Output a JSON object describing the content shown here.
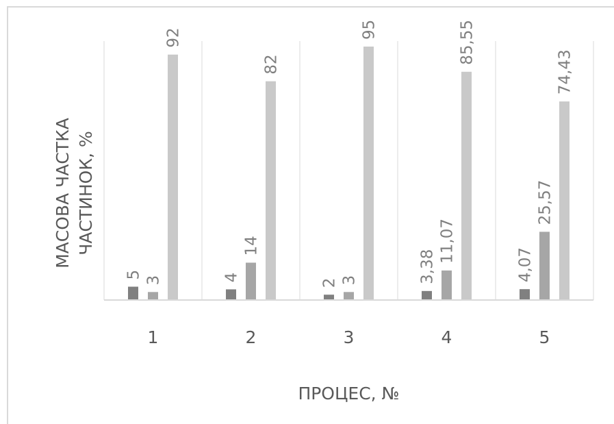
{
  "chart_data": {
    "type": "bar",
    "xlabel": "ПРОЦЕС, №",
    "ylabel_lines": [
      "МАСОВА ЧАСТКА",
      "ЧАСТИНОК, %"
    ],
    "categories": [
      "1",
      "2",
      "3",
      "4",
      "5"
    ],
    "series": [
      {
        "values": [
          5,
          4,
          2,
          3.38,
          4.07
        ],
        "labels": [
          "5",
          "4",
          "2",
          "3,38",
          "4,07"
        ],
        "color": "#808080"
      },
      {
        "values": [
          3,
          14,
          3,
          11.07,
          25.57
        ],
        "labels": [
          "3",
          "14",
          "3",
          "11,07",
          "25,57"
        ],
        "color": "#a6a6a6"
      },
      {
        "values": [
          92,
          82,
          95,
          85.55,
          74.43
        ],
        "labels": [
          "92",
          "82",
          "95",
          "85,55",
          "74,43"
        ],
        "color": "#c9c9c9"
      }
    ],
    "ylim": [
      0,
      100
    ],
    "grid": "vertical category separators",
    "legend": "none"
  }
}
